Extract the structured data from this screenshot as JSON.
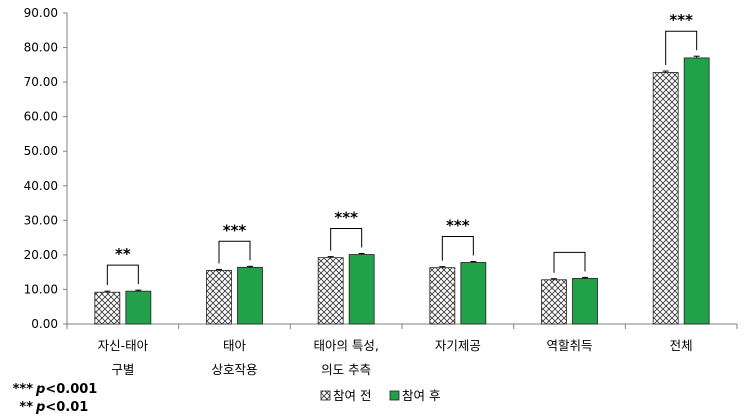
{
  "chart_data": {
    "type": "bar",
    "categories": [
      [
        "자신-태아",
        "구별"
      ],
      [
        "태아",
        "상호작용"
      ],
      [
        "태아의 특성,",
        "의도 추측"
      ],
      [
        "자기제공"
      ],
      [
        "역할취득"
      ],
      [
        "전체"
      ]
    ],
    "series": [
      {
        "name": "참여 전",
        "values": [
          9.2,
          15.5,
          19.2,
          16.3,
          12.8,
          72.8
        ],
        "error": [
          0.3,
          0.3,
          0.3,
          0.3,
          0.3,
          0.4
        ],
        "pattern": "crosshatch",
        "color": "#ffffff"
      },
      {
        "name": "참여 후",
        "values": [
          9.5,
          16.4,
          20.1,
          17.8,
          13.2,
          77.0
        ],
        "error": [
          0.3,
          0.3,
          0.3,
          0.3,
          0.3,
          0.5
        ],
        "pattern": "solid",
        "color": "#21a24a"
      }
    ],
    "significance": [
      "**",
      "***",
      "***",
      "***",
      "",
      "***"
    ],
    "ylim": [
      0,
      90
    ],
    "yticks": [
      "0.00",
      "10.00",
      "20.00",
      "30.00",
      "40.00",
      "50.00",
      "60.00",
      "70.00",
      "80.00",
      "90.00"
    ],
    "title": "",
    "xlabel": "",
    "ylabel": "",
    "grid": false,
    "legend_position": "bottom-center",
    "notes": [
      {
        "stars": "***",
        "text": "<0.001"
      },
      {
        "stars": "**",
        "text": "<0.01"
      }
    ],
    "p_symbol": "p"
  }
}
